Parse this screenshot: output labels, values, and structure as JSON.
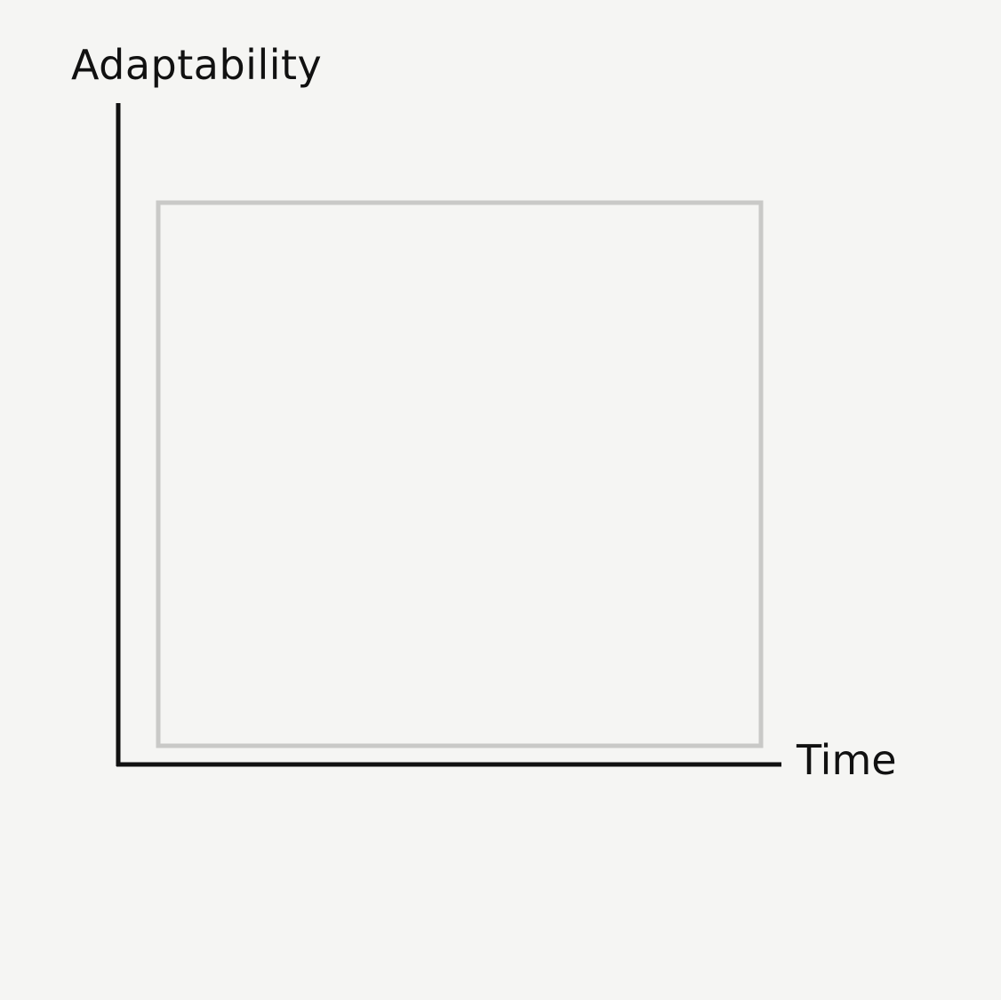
{
  "chart_data": {
    "type": "line",
    "title": "",
    "xlabel": "Time",
    "ylabel": "Adaptability",
    "series": [],
    "grid": false,
    "legend": "none",
    "plot_frame_color": "#c9c9c7",
    "axis_color": "#111111",
    "background_color": "#f5f5f3"
  }
}
